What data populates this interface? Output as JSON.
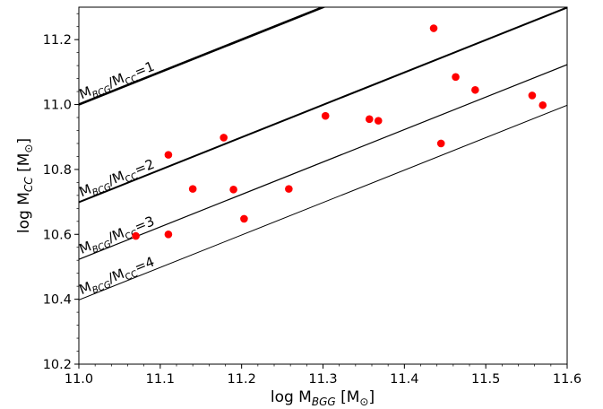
{
  "chart_data": {
    "type": "scatter",
    "title": "",
    "xlabel": {
      "base": "log M",
      "sub": "BGG",
      "unit": "[M",
      "unit_sub": "⊙",
      "close": "]"
    },
    "ylabel": {
      "base": "log M",
      "sub": "CC",
      "unit": "[M",
      "unit_sub": "⊙",
      "close": "]"
    },
    "xlim": [
      11.0,
      11.6
    ],
    "ylim": [
      10.2,
      11.3
    ],
    "xticks": [
      "11.0",
      "11.1",
      "11.2",
      "11.3",
      "11.4",
      "11.5",
      "11.6"
    ],
    "yticks": [
      "10.2",
      "10.4",
      "10.6",
      "10.8",
      "11.0",
      "11.2"
    ],
    "grid": false,
    "series": [
      {
        "color": "#ff0000",
        "marker": "circle",
        "x": [
          11.07,
          11.11,
          11.11,
          11.14,
          11.178,
          11.19,
          11.203,
          11.258,
          11.303,
          11.357,
          11.368,
          11.436,
          11.445,
          11.463,
          11.487,
          11.557,
          11.57
        ],
        "y": [
          10.595,
          10.6,
          10.845,
          10.74,
          10.898,
          10.738,
          10.648,
          10.74,
          10.965,
          10.955,
          10.95,
          11.235,
          10.88,
          11.085,
          11.045,
          11.028,
          10.998
        ]
      }
    ],
    "reference_lines": [
      {
        "ratio": 1,
        "intercept": 0.0,
        "label_main": "M",
        "label_sub1": "BCG",
        "label_mid": "/M",
        "label_sub2": "CC",
        "label_end": "=1",
        "width": 2.6
      },
      {
        "ratio": 2,
        "intercept": -0.30103,
        "label_main": "M",
        "label_sub1": "BCG",
        "label_mid": "/M",
        "label_sub2": "CC",
        "label_end": "=2",
        "width": 2.0
      },
      {
        "ratio": 3,
        "intercept": -0.47712,
        "label_main": "M",
        "label_sub1": "BCG",
        "label_mid": "/M",
        "label_sub2": "CC",
        "label_end": "=3",
        "width": 1.2
      },
      {
        "ratio": 4,
        "intercept": -0.60206,
        "label_main": "M",
        "label_sub1": "BCG",
        "label_mid": "/M",
        "label_sub2": "CC",
        "label_end": "=4",
        "width": 1.0
      }
    ]
  }
}
